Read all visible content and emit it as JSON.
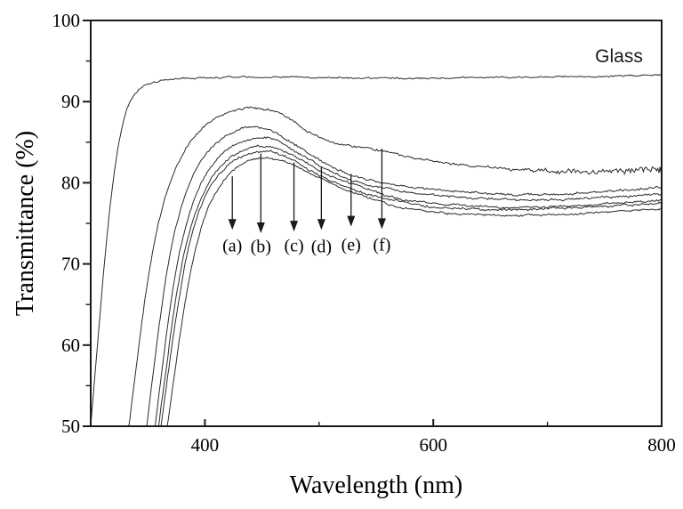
{
  "page": {
    "background": "#ffffff",
    "ink_color": "#1a1a1a",
    "curve_color": "#2b2b2b"
  },
  "chart_data": {
    "type": "line",
    "title": "",
    "xlabel": "Wavelength (nm)",
    "ylabel": "Transmittance (%)",
    "xlim": [
      300,
      800
    ],
    "ylim": [
      50,
      100
    ],
    "x_major_ticks": [
      400,
      600,
      800
    ],
    "x_minor_ticks": [
      500,
      700
    ],
    "y_major_ticks": [
      50,
      60,
      70,
      80,
      90,
      100
    ],
    "y_minor_ticks": [
      55,
      65,
      75,
      85,
      95
    ],
    "grid": false,
    "legend_position": "none",
    "series": [
      {
        "name": "Glass",
        "seed": 11,
        "noise": 0.14,
        "points": [
          [
            300,
            50
          ],
          [
            302,
            53.5
          ],
          [
            305,
            58.5
          ],
          [
            308,
            63.5
          ],
          [
            311,
            68.5
          ],
          [
            314,
            73
          ],
          [
            317,
            77
          ],
          [
            320,
            80.5
          ],
          [
            323,
            83.5
          ],
          [
            326,
            85.9
          ],
          [
            329,
            87.8
          ],
          [
            332,
            89.2
          ],
          [
            336,
            90.4
          ],
          [
            340,
            91.2
          ],
          [
            345,
            91.8
          ],
          [
            350,
            92.1
          ],
          [
            358,
            92.5
          ],
          [
            368,
            92.7
          ],
          [
            380,
            92.8
          ],
          [
            395,
            92.9
          ],
          [
            420,
            93
          ],
          [
            450,
            93
          ],
          [
            480,
            93
          ],
          [
            510,
            92.9
          ],
          [
            540,
            92.9
          ],
          [
            570,
            92.9
          ],
          [
            600,
            92.9
          ],
          [
            630,
            93
          ],
          [
            660,
            93
          ],
          [
            690,
            93
          ],
          [
            720,
            93.1
          ],
          [
            750,
            93.1
          ],
          [
            775,
            93.2
          ],
          [
            800,
            93.2
          ]
        ]
      },
      {
        "name": "f",
        "seed": 29,
        "noise": 0.19,
        "noise_tail": {
          "from": 630,
          "max": 0.9
        },
        "points": [
          [
            333.5,
            50
          ],
          [
            337,
            54
          ],
          [
            341,
            58.5
          ],
          [
            345,
            63
          ],
          [
            349,
            67
          ],
          [
            353,
            70.5
          ],
          [
            357,
            73.5
          ],
          [
            362,
            76.5
          ],
          [
            367,
            79
          ],
          [
            373,
            81.3
          ],
          [
            380,
            83.3
          ],
          [
            388,
            85.1
          ],
          [
            396,
            86.5
          ],
          [
            404,
            87.5
          ],
          [
            413,
            88.3
          ],
          [
            423,
            88.8
          ],
          [
            434,
            89.1
          ],
          [
            445,
            89.2
          ],
          [
            456,
            89
          ],
          [
            467,
            88.4
          ],
          [
            478,
            87.5
          ],
          [
            490,
            86.4
          ],
          [
            502,
            85.5
          ],
          [
            515,
            84.9
          ],
          [
            530,
            84.5
          ],
          [
            545,
            84.2
          ],
          [
            562,
            83.7
          ],
          [
            580,
            83.1
          ],
          [
            600,
            82.7
          ],
          [
            620,
            82.3
          ],
          [
            640,
            82
          ],
          [
            665,
            81.7
          ],
          [
            690,
            81.5
          ],
          [
            715,
            81.4
          ],
          [
            740,
            81.4
          ],
          [
            765,
            81.5
          ],
          [
            785,
            81.6
          ],
          [
            800,
            81.7
          ]
        ]
      },
      {
        "name": "e",
        "seed": 37,
        "noise": 0.19,
        "points": [
          [
            349,
            50
          ],
          [
            352.5,
            54
          ],
          [
            356,
            58
          ],
          [
            360,
            62.5
          ],
          [
            364,
            66.5
          ],
          [
            368,
            70
          ],
          [
            372,
            73
          ],
          [
            377,
            75.8
          ],
          [
            382,
            78.2
          ],
          [
            388,
            80.4
          ],
          [
            395,
            82.3
          ],
          [
            403,
            83.9
          ],
          [
            411,
            85
          ],
          [
            420,
            85.9
          ],
          [
            430,
            86.5
          ],
          [
            440,
            86.9
          ],
          [
            450,
            86.8
          ],
          [
            460,
            86.3
          ],
          [
            470,
            85.5
          ],
          [
            481,
            84.5
          ],
          [
            492,
            83.5
          ],
          [
            504,
            82.5
          ],
          [
            517,
            81.6
          ],
          [
            530,
            80.9
          ],
          [
            545,
            80.3
          ],
          [
            560,
            79.9
          ],
          [
            578,
            79.5
          ],
          [
            598,
            79.2
          ],
          [
            620,
            78.9
          ],
          [
            645,
            78.7
          ],
          [
            670,
            78.6
          ],
          [
            695,
            78.6
          ],
          [
            720,
            78.7
          ],
          [
            745,
            78.9
          ],
          [
            770,
            79.1
          ],
          [
            800,
            79.4
          ]
        ]
      },
      {
        "name": "d",
        "seed": 43,
        "noise": 0.19,
        "points": [
          [
            356.5,
            50
          ],
          [
            360,
            54
          ],
          [
            363.5,
            58
          ],
          [
            367,
            62
          ],
          [
            371,
            66
          ],
          [
            375,
            69.5
          ],
          [
            379,
            72.3
          ],
          [
            384,
            75
          ],
          [
            389,
            77.3
          ],
          [
            395,
            79.4
          ],
          [
            402,
            81.2
          ],
          [
            410,
            82.8
          ],
          [
            419,
            84
          ],
          [
            429,
            84.9
          ],
          [
            440,
            85.4
          ],
          [
            450,
            85.6
          ],
          [
            460,
            85.3
          ],
          [
            470,
            84.6
          ],
          [
            481,
            83.7
          ],
          [
            492,
            82.8
          ],
          [
            504,
            81.9
          ],
          [
            517,
            81
          ],
          [
            530,
            80.3
          ],
          [
            545,
            79.7
          ],
          [
            562,
            79.2
          ],
          [
            580,
            78.8
          ],
          [
            600,
            78.5
          ],
          [
            625,
            78.2
          ],
          [
            650,
            78
          ],
          [
            675,
            77.9
          ],
          [
            700,
            77.9
          ],
          [
            725,
            78
          ],
          [
            750,
            78.2
          ],
          [
            775,
            78.4
          ],
          [
            800,
            78.6
          ]
        ]
      },
      {
        "name": "c",
        "seed": 53,
        "noise": 0.19,
        "points": [
          [
            359.5,
            50
          ],
          [
            363,
            53.8
          ],
          [
            366.5,
            57.5
          ],
          [
            370,
            61.3
          ],
          [
            374,
            65.2
          ],
          [
            378,
            68.6
          ],
          [
            382,
            71.5
          ],
          [
            387,
            74.2
          ],
          [
            392,
            76.5
          ],
          [
            398,
            78.6
          ],
          [
            405,
            80.4
          ],
          [
            413,
            81.9
          ],
          [
            422,
            83.1
          ],
          [
            432,
            83.9
          ],
          [
            443,
            84.4
          ],
          [
            454,
            84.5
          ],
          [
            465,
            84.1
          ],
          [
            476,
            83.4
          ],
          [
            487,
            82.6
          ],
          [
            499,
            81.7
          ],
          [
            512,
            80.8
          ],
          [
            526,
            80
          ],
          [
            541,
            79.2
          ],
          [
            558,
            78.5
          ],
          [
            576,
            77.9
          ],
          [
            595,
            77.5
          ],
          [
            615,
            77.3
          ],
          [
            640,
            77.1
          ],
          [
            665,
            77
          ],
          [
            690,
            77
          ],
          [
            715,
            77.1
          ],
          [
            740,
            77.3
          ],
          [
            765,
            77.5
          ],
          [
            785,
            77.7
          ],
          [
            800,
            77.8
          ]
        ]
      },
      {
        "name": "b",
        "seed": 61,
        "noise": 0.19,
        "points": [
          [
            361.5,
            50
          ],
          [
            365,
            53.6
          ],
          [
            368.5,
            57.2
          ],
          [
            372,
            60.8
          ],
          [
            376,
            64.6
          ],
          [
            380,
            68
          ],
          [
            384,
            71
          ],
          [
            389,
            73.8
          ],
          [
            394,
            76.1
          ],
          [
            400,
            78.2
          ],
          [
            407,
            80
          ],
          [
            415,
            81.5
          ],
          [
            424,
            82.7
          ],
          [
            434,
            83.4
          ],
          [
            445,
            83.8
          ],
          [
            456,
            83.8
          ],
          [
            467,
            83.3
          ],
          [
            478,
            82.6
          ],
          [
            490,
            81.7
          ],
          [
            503,
            80.8
          ],
          [
            517,
            79.9
          ],
          [
            532,
            79.1
          ],
          [
            548,
            78.4
          ],
          [
            565,
            77.8
          ],
          [
            583,
            77.3
          ],
          [
            603,
            77
          ],
          [
            628,
            76.8
          ],
          [
            653,
            76.7
          ],
          [
            678,
            76.7
          ],
          [
            703,
            76.8
          ],
          [
            728,
            76.9
          ],
          [
            753,
            77.1
          ],
          [
            778,
            77.3
          ],
          [
            800,
            77.5
          ]
        ]
      },
      {
        "name": "a",
        "seed": 71,
        "noise": 0.17,
        "points": [
          [
            367,
            50
          ],
          [
            370.5,
            53.5
          ],
          [
            374,
            57
          ],
          [
            377.5,
            60.5
          ],
          [
            381.5,
            64.2
          ],
          [
            385.5,
            67.6
          ],
          [
            390,
            70.8
          ],
          [
            395,
            73.6
          ],
          [
            400,
            75.9
          ],
          [
            406,
            77.9
          ],
          [
            413,
            79.6
          ],
          [
            421,
            81
          ],
          [
            430,
            82.1
          ],
          [
            440,
            82.8
          ],
          [
            451,
            83.1
          ],
          [
            462,
            83
          ],
          [
            473,
            82.5
          ],
          [
            484,
            81.8
          ],
          [
            496,
            80.9
          ],
          [
            509,
            80
          ],
          [
            523,
            79.1
          ],
          [
            538,
            78.3
          ],
          [
            554,
            77.6
          ],
          [
            571,
            77
          ],
          [
            589,
            76.6
          ],
          [
            609,
            76.3
          ],
          [
            634,
            76.1
          ],
          [
            659,
            76
          ],
          [
            684,
            76
          ],
          [
            709,
            76.1
          ],
          [
            734,
            76.3
          ],
          [
            759,
            76.5
          ],
          [
            784,
            76.7
          ],
          [
            800,
            76.8
          ]
        ]
      }
    ],
    "annotations": {
      "glass_label": {
        "text": "Glass",
        "x": 760,
        "y": 95.8
      },
      "arrows": [
        {
          "label": "(a)",
          "x": 424,
          "y_start": 80.8,
          "y_end": 74.2,
          "label_y": 72.3
        },
        {
          "label": "(b)",
          "x": 449,
          "y_start": 83.6,
          "y_end": 73.8,
          "label_y": 72.2
        },
        {
          "label": "(c)",
          "x": 478,
          "y_start": 82.5,
          "y_end": 74.0,
          "label_y": 72.3
        },
        {
          "label": "(d)",
          "x": 502,
          "y_start": 81.9,
          "y_end": 74.2,
          "label_y": 72.2
        },
        {
          "label": "(e)",
          "x": 528,
          "y_start": 81.1,
          "y_end": 74.6,
          "label_y": 72.4
        },
        {
          "label": "(f)",
          "x": 555,
          "y_start": 84.2,
          "y_end": 74.3,
          "label_y": 72.4
        }
      ]
    }
  }
}
